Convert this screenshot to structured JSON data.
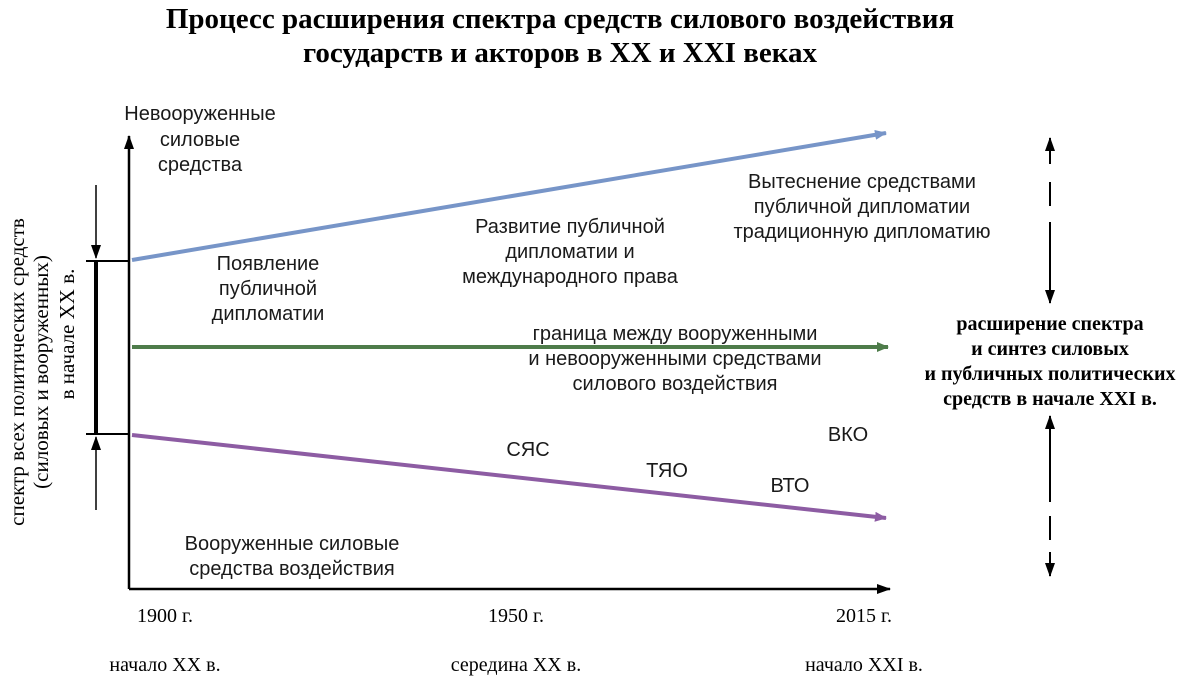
{
  "title": {
    "line1": "Процесс расширения спектра средств силового воздействия",
    "line2": "государств и акторов в XX и XXI веках"
  },
  "axis": {
    "y_top_label": [
      "Невооруженные",
      "силовые",
      "средства"
    ],
    "x_ticks": [
      "1900 г.",
      "1950 г.",
      "2015 г."
    ],
    "x_periods": [
      "начало XX в.",
      "середина XX в.",
      "начало XXI в."
    ],
    "vertical_caption": [
      "спектр всех политических средств",
      "(силовых и вооруженных)",
      "в начале XX в."
    ]
  },
  "lines": {
    "blue": {
      "color": "#7795c8",
      "name": "public diplomacy line"
    },
    "green": {
      "color": "#4e7c4a",
      "name": "boundary line"
    },
    "purple": {
      "color": "#8d5ca3",
      "name": "armed means line"
    }
  },
  "labels": {
    "emergence": [
      "Появление",
      "публичной",
      "дипломатии"
    ],
    "development": [
      "Развитие публичной",
      "дипломатии и",
      "международного права"
    ],
    "displacement": [
      "Вытеснение средствами",
      "публичной дипломатии",
      "традиционную дипломатию"
    ],
    "boundary": [
      "граница между вооруженными",
      "и невооруженными средствами",
      "силового воздействия"
    ],
    "armed": [
      "Вооруженные силовые",
      "средства воздействия"
    ],
    "weapons": {
      "syas": "СЯС",
      "tyao": "ТЯО",
      "vto": "ВТО",
      "vko": "ВКО"
    }
  },
  "right_note": [
    "расширение спектра",
    "и синтез силовых",
    "и публичных политических",
    "средств в начале XXI в."
  ]
}
